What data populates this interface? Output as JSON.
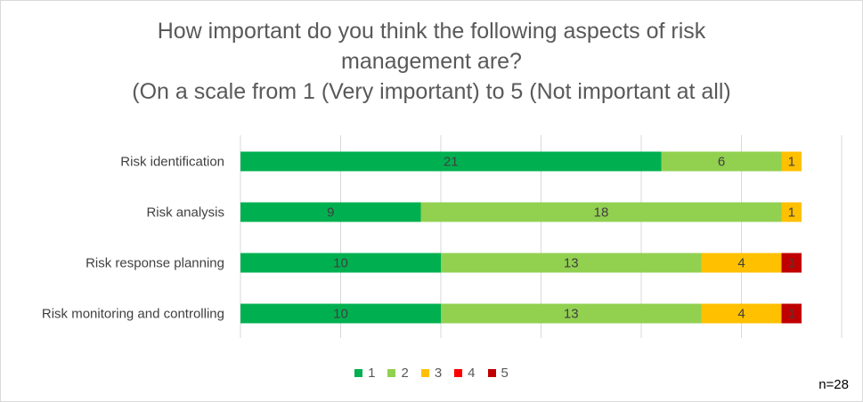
{
  "title": {
    "line1": "How important do you think the following aspects of risk",
    "line2": "management are?",
    "line3": "(On a scale from 1 (Very important) to 5 (Not important at all)"
  },
  "note": "n=28",
  "colors": {
    "1": "#00b050",
    "2": "#92d050",
    "3": "#ffc000",
    "4": "#ff0000",
    "5": "#c00000"
  },
  "chart_data": {
    "type": "bar",
    "orientation": "horizontal",
    "stacked": true,
    "title": "How important do you think the following aspects of risk management are? (On a scale from 1 (Very important) to 5 (Not important at all)",
    "categories": [
      "Risk identification",
      "Risk analysis",
      "Risk response planning",
      "Risk monitoring and controlling"
    ],
    "series": [
      {
        "name": "1",
        "values": [
          21,
          9,
          10,
          10
        ]
      },
      {
        "name": "2",
        "values": [
          6,
          18,
          13,
          13
        ]
      },
      {
        "name": "3",
        "values": [
          1,
          1,
          4,
          4
        ]
      },
      {
        "name": "4",
        "values": [
          0,
          0,
          0,
          0
        ]
      },
      {
        "name": "5",
        "values": [
          0,
          0,
          1,
          1
        ]
      }
    ],
    "xlim": [
      0,
      30
    ],
    "grid": true,
    "legend": "bottom"
  }
}
